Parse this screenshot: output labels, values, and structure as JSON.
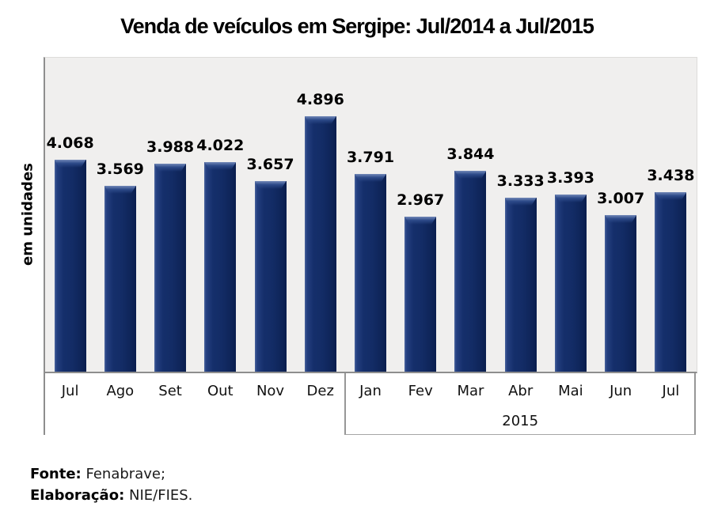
{
  "chart_data": {
    "type": "bar",
    "title": "Venda de veículos em Sergipe: Jul/2014 a Jul/2015",
    "xlabel": "",
    "ylabel": "em unidades",
    "categories": [
      "Jul",
      "Ago",
      "Set",
      "Out",
      "Nov",
      "Dez",
      "Jan",
      "Fev",
      "Mar",
      "Abr",
      "Mai",
      "Jun",
      "Jul"
    ],
    "values": [
      4068,
      3569,
      3988,
      4022,
      3657,
      4896,
      3791,
      2967,
      3844,
      3333,
      3393,
      3007,
      3438
    ],
    "value_labels": [
      "4.068",
      "3.569",
      "3.988",
      "4.022",
      "3.657",
      "4.896",
      "3.791",
      "2.967",
      "3.844",
      "3.333",
      "3.393",
      "3.007",
      "3.438"
    ],
    "group_labels": [
      {
        "label": "",
        "start": 0,
        "end": 5
      },
      {
        "label": "2015",
        "start": 6,
        "end": 12
      }
    ],
    "ylim": [
      0,
      6000
    ],
    "grid": false,
    "legend": false,
    "bar_color": "#152f6b",
    "plot_background": "#f0efee",
    "axis_color": "#8e8e8e"
  },
  "footer": {
    "source_label": "Fonte:",
    "source_value": " Fenabrave;",
    "elaboration_label": "Elaboração:",
    "elaboration_value": " NIE/FIES."
  }
}
